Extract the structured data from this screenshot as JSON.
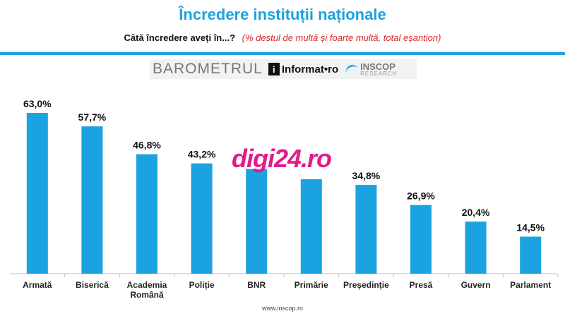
{
  "title": "Încredere instituții naționale",
  "subtitle_question": "Câtă încredere aveți în...?",
  "subtitle_note": "(% destul de multă și foarte multă, total eșantion)",
  "logos": {
    "barometrul": "BAROMETRUL",
    "informat_icon": "i",
    "informat_text": "Informat•ro",
    "inscop": "INSCOP",
    "research": "RESEARCH"
  },
  "watermark": "digi24.ro",
  "source": "www.inscop.ro",
  "colors": {
    "bar": "#1aa3e0",
    "title": "#1aa3e0",
    "note": "#d42a2a",
    "watermark": "#e21b8a"
  },
  "chart_data": {
    "type": "bar",
    "categories": [
      "Armată",
      "Biserică",
      "Academia\nRomână",
      "Poliție",
      "BNR",
      "Primărie",
      "Președinție",
      "Presă",
      "Guvern",
      "Parlament"
    ],
    "values": [
      63.0,
      57.7,
      46.8,
      43.2,
      null,
      null,
      34.8,
      26.9,
      20.4,
      14.5
    ],
    "data_labels": [
      "63,0%",
      "57,7%",
      "46,8%",
      "43,2%",
      "",
      "",
      "34,8%",
      "26,9%",
      "20,4%",
      "14,5%"
    ],
    "title": "Încredere instituții naționale",
    "xlabel": "",
    "ylabel": "",
    "ylim": [
      0,
      63.0
    ],
    "grid": false,
    "legend": "none"
  }
}
